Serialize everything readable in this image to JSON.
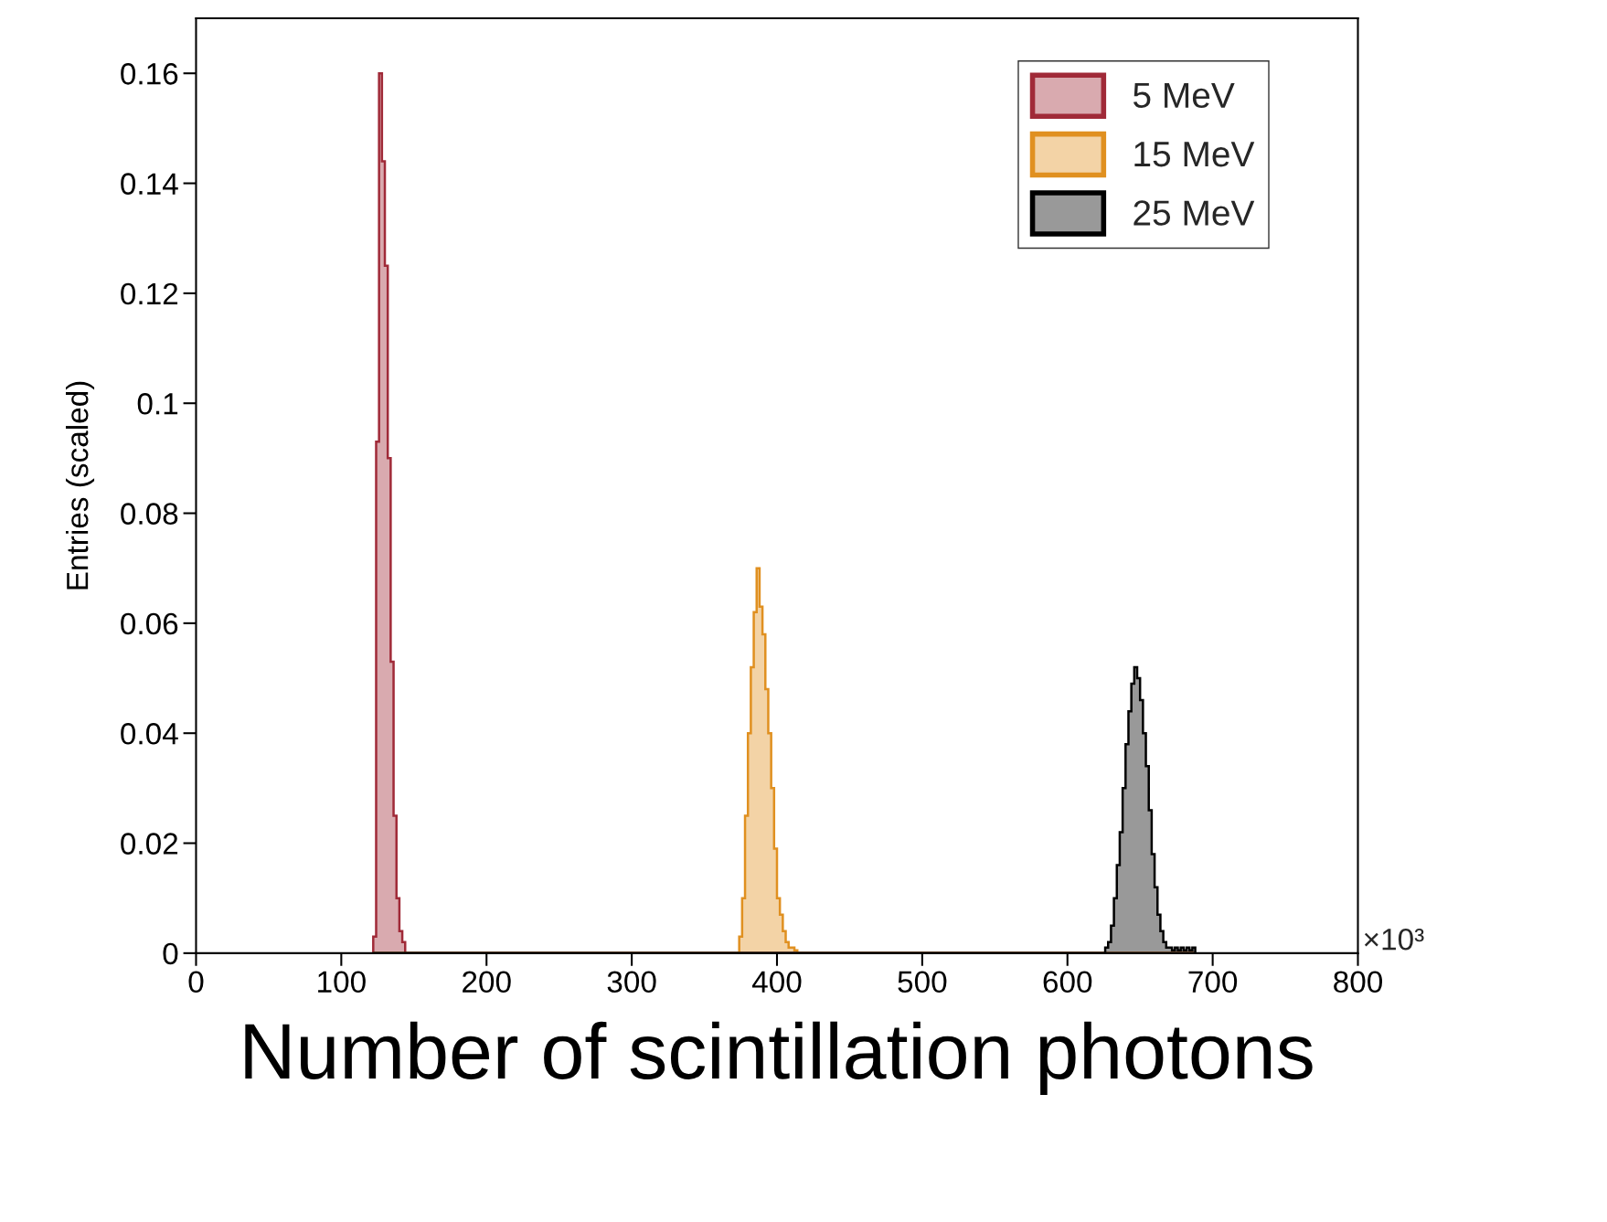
{
  "chart_data": {
    "type": "histogram",
    "xlabel": "Number of scintillation photons",
    "ylabel": "Entries (scaled)",
    "xlim": [
      0,
      800
    ],
    "xticks": [
      0,
      100,
      200,
      300,
      400,
      500,
      600,
      700,
      800
    ],
    "ylim": [
      0,
      0.17
    ],
    "yticks": [
      0,
      0.02,
      0.04,
      0.06,
      0.08,
      0.1,
      0.12,
      0.14,
      0.16
    ],
    "legend": "top right",
    "grid": false,
    "annotations": [
      "×10³"
    ],
    "bins": [
      122,
      124,
      126,
      128,
      130,
      132,
      134,
      136,
      138,
      140,
      142,
      144,
      146,
      148,
      150,
      152,
      154,
      156,
      158,
      160,
      162,
      164,
      166,
      168,
      170,
      172,
      174,
      176,
      178,
      180,
      182,
      184,
      186,
      188,
      190,
      192,
      194,
      196,
      198,
      200,
      202,
      204,
      206,
      208,
      210,
      212,
      214,
      216,
      218,
      220,
      222,
      224,
      226,
      228,
      230,
      232,
      234,
      236,
      238,
      240,
      242,
      244,
      246,
      248,
      250,
      252,
      254,
      256,
      258,
      260,
      262,
      264,
      266,
      268,
      270,
      272,
      274,
      276,
      278,
      280,
      282,
      284,
      286,
      288,
      290,
      292,
      294,
      296,
      298,
      300,
      302,
      304,
      306,
      308,
      310,
      312,
      314,
      316,
      318,
      320,
      322,
      324,
      326,
      328,
      330,
      332,
      334,
      336,
      338,
      340,
      342,
      344,
      346,
      348,
      350,
      352,
      354,
      356,
      358,
      360,
      362,
      364,
      366,
      368,
      370,
      372,
      374,
      376,
      378,
      380,
      382,
      384,
      386,
      388,
      390,
      392,
      394,
      396,
      398,
      400,
      402,
      404,
      406,
      408,
      410,
      412,
      414,
      416,
      418,
      420,
      422,
      424,
      426,
      428,
      430,
      432,
      434,
      436,
      438,
      440,
      442,
      444,
      446,
      448,
      450,
      452,
      454,
      456,
      458,
      460,
      462,
      464,
      466,
      468,
      470,
      472,
      474,
      476,
      478,
      480,
      482,
      484,
      486,
      488,
      490,
      492,
      494,
      496,
      498,
      500,
      502,
      504,
      506,
      508,
      510,
      512,
      514,
      516,
      518,
      520,
      522,
      524,
      526,
      528,
      530,
      532,
      534,
      536,
      538,
      540,
      542,
      544,
      546,
      548,
      550,
      552,
      554,
      556,
      558,
      560,
      562,
      564,
      566,
      568,
      570,
      572,
      574,
      576,
      578,
      580,
      582,
      584,
      586,
      588,
      590,
      592,
      594,
      596,
      598,
      600,
      602,
      604,
      606,
      608,
      610,
      612,
      614,
      616,
      618,
      620,
      622,
      624,
      626,
      628,
      630,
      632,
      634,
      636,
      638,
      640,
      642,
      644,
      646,
      648,
      650,
      652,
      654,
      656,
      658,
      660,
      662,
      664,
      666,
      668,
      670,
      672,
      674,
      676,
      678,
      680,
      682,
      684,
      686,
      688
    ],
    "series": [
      {
        "name": "5 MeV",
        "color": "#a02a38",
        "values": [
          0.003,
          0.093,
          0.16,
          0.144,
          0.125,
          0.09,
          0.053,
          0.025,
          0.01,
          0.004,
          0.002,
          0,
          0,
          0,
          0,
          0,
          0,
          0,
          0,
          0,
          0,
          0,
          0,
          0,
          0,
          0,
          0,
          0,
          0,
          0,
          0,
          0,
          0,
          0,
          0,
          0,
          0,
          0,
          0,
          0,
          0,
          0,
          0,
          0,
          0,
          0,
          0,
          0,
          0,
          0,
          0,
          0,
          0,
          0,
          0,
          0,
          0,
          0,
          0,
          0,
          0,
          0,
          0,
          0,
          0,
          0,
          0,
          0,
          0,
          0,
          0,
          0,
          0,
          0,
          0,
          0,
          0,
          0,
          0,
          0,
          0,
          0,
          0,
          0,
          0,
          0,
          0,
          0,
          0,
          0,
          0,
          0,
          0,
          0,
          0,
          0,
          0,
          0,
          0,
          0,
          0,
          0,
          0,
          0,
          0,
          0,
          0,
          0,
          0,
          0,
          0,
          0,
          0,
          0,
          0,
          0,
          0,
          0,
          0,
          0,
          0,
          0,
          0,
          0,
          0,
          0,
          0,
          0,
          0,
          0,
          0,
          0,
          0,
          0,
          0,
          0,
          0,
          0,
          0,
          0,
          0,
          0,
          0,
          0,
          0,
          0,
          0,
          0,
          0,
          0,
          0,
          0,
          0,
          0,
          0,
          0,
          0,
          0,
          0,
          0,
          0,
          0,
          0,
          0,
          0,
          0,
          0,
          0,
          0,
          0,
          0,
          0,
          0,
          0,
          0,
          0,
          0,
          0,
          0,
          0,
          0,
          0,
          0,
          0,
          0,
          0,
          0,
          0,
          0,
          0,
          0,
          0,
          0,
          0,
          0,
          0,
          0,
          0,
          0,
          0,
          0,
          0,
          0,
          0,
          0,
          0,
          0,
          0,
          0,
          0,
          0,
          0,
          0,
          0,
          0,
          0,
          0,
          0,
          0,
          0,
          0,
          0,
          0,
          0,
          0,
          0,
          0,
          0,
          0,
          0,
          0,
          0,
          0,
          0,
          0,
          0,
          0,
          0,
          0,
          0,
          0,
          0,
          0,
          0,
          0,
          0,
          0,
          0,
          0,
          0,
          0,
          0,
          0,
          0,
          0,
          0,
          0,
          0,
          0,
          0,
          0,
          0,
          0,
          0,
          0,
          0,
          0,
          0,
          0,
          0,
          0,
          0,
          0,
          0,
          0,
          0,
          0,
          0,
          0,
          0,
          0,
          0,
          0
        ]
      },
      {
        "name": "15 MeV",
        "color": "#e09020",
        "values": [
          0,
          0,
          0,
          0,
          0,
          0,
          0,
          0,
          0,
          0,
          0,
          0,
          0,
          0,
          0,
          0,
          0,
          0,
          0,
          0,
          0,
          0,
          0,
          0,
          0,
          0,
          0,
          0,
          0,
          0,
          0,
          0,
          0,
          0,
          0,
          0,
          0,
          0,
          0,
          0,
          0,
          0,
          0,
          0,
          0,
          0,
          0,
          0,
          0,
          0,
          0,
          0,
          0,
          0,
          0,
          0,
          0,
          0,
          0,
          0,
          0,
          0,
          0,
          0,
          0,
          0,
          0,
          0,
          0,
          0,
          0,
          0,
          0,
          0,
          0,
          0,
          0,
          0,
          0,
          0,
          0,
          0,
          0,
          0,
          0,
          0,
          0,
          0,
          0,
          0,
          0,
          0,
          0,
          0,
          0,
          0,
          0,
          0,
          0,
          0,
          0,
          0,
          0,
          0,
          0,
          0,
          0,
          0,
          0,
          0,
          0,
          0,
          0,
          0,
          0,
          0,
          0,
          0,
          0,
          0,
          0,
          0,
          0,
          0,
          0,
          0,
          0.003,
          0.01,
          0.025,
          0.04,
          0.052,
          0.062,
          0.07,
          0.063,
          0.058,
          0.048,
          0.04,
          0.03,
          0.019,
          0.01,
          0.007,
          0.004,
          0.002,
          0.001,
          0.001,
          0.0005,
          0,
          0,
          0,
          0,
          0,
          0,
          0,
          0,
          0,
          0,
          0,
          0,
          0,
          0,
          0,
          0,
          0,
          0,
          0,
          0,
          0,
          0,
          0,
          0,
          0,
          0,
          0,
          0,
          0,
          0,
          0,
          0,
          0,
          0,
          0,
          0,
          0,
          0,
          0,
          0,
          0,
          0,
          0,
          0,
          0,
          0,
          0,
          0,
          0,
          0,
          0,
          0,
          0,
          0,
          0,
          0,
          0,
          0,
          0,
          0,
          0,
          0,
          0,
          0,
          0,
          0,
          0,
          0,
          0,
          0,
          0,
          0,
          0,
          0,
          0,
          0,
          0,
          0,
          0,
          0,
          0,
          0,
          0,
          0,
          0,
          0,
          0,
          0,
          0,
          0,
          0,
          0,
          0,
          0,
          0,
          0,
          0,
          0,
          0,
          0,
          0,
          0,
          0,
          0,
          0,
          0,
          0,
          0,
          0,
          0,
          0,
          0,
          0,
          0,
          0,
          0,
          0,
          0,
          0,
          0,
          0,
          0,
          0,
          0,
          0,
          0,
          0,
          0,
          0,
          0,
          0,
          0,
          0,
          0,
          0,
          0,
          0
        ]
      },
      {
        "name": "25 MeV",
        "color": "#000000",
        "values": [
          0,
          0,
          0,
          0,
          0,
          0,
          0,
          0,
          0,
          0,
          0,
          0,
          0,
          0,
          0,
          0,
          0,
          0,
          0,
          0,
          0,
          0,
          0,
          0,
          0,
          0,
          0,
          0,
          0,
          0,
          0,
          0,
          0,
          0,
          0,
          0,
          0,
          0,
          0,
          0,
          0,
          0,
          0,
          0,
          0,
          0,
          0,
          0,
          0,
          0,
          0,
          0,
          0,
          0,
          0,
          0,
          0,
          0,
          0,
          0,
          0,
          0,
          0,
          0,
          0,
          0,
          0,
          0,
          0,
          0,
          0,
          0,
          0,
          0,
          0,
          0,
          0,
          0,
          0,
          0,
          0,
          0,
          0,
          0,
          0,
          0,
          0,
          0,
          0,
          0,
          0,
          0,
          0,
          0,
          0,
          0,
          0,
          0,
          0,
          0,
          0,
          0,
          0,
          0,
          0,
          0,
          0,
          0,
          0,
          0,
          0,
          0,
          0,
          0,
          0,
          0,
          0,
          0,
          0,
          0,
          0,
          0,
          0,
          0,
          0,
          0,
          0,
          0,
          0,
          0,
          0,
          0,
          0,
          0,
          0,
          0,
          0,
          0,
          0,
          0,
          0,
          0,
          0,
          0,
          0,
          0,
          0,
          0,
          0,
          0,
          0,
          0,
          0,
          0,
          0,
          0,
          0,
          0,
          0,
          0,
          0,
          0,
          0,
          0,
          0,
          0,
          0,
          0,
          0,
          0,
          0,
          0,
          0,
          0,
          0,
          0,
          0,
          0,
          0,
          0,
          0,
          0,
          0,
          0,
          0,
          0,
          0,
          0,
          0,
          0,
          0,
          0,
          0,
          0,
          0,
          0,
          0,
          0,
          0,
          0,
          0,
          0,
          0,
          0,
          0,
          0,
          0,
          0,
          0,
          0,
          0,
          0,
          0,
          0,
          0,
          0,
          0,
          0,
          0,
          0,
          0,
          0,
          0,
          0,
          0,
          0,
          0,
          0,
          0,
          0,
          0,
          0,
          0,
          0,
          0,
          0,
          0,
          0,
          0,
          0,
          0,
          0,
          0,
          0,
          0,
          0,
          0,
          0,
          0,
          0,
          0,
          0,
          0.001,
          0.002,
          0.005,
          0.01,
          0.016,
          0.022,
          0.03,
          0.038,
          0.044,
          0.049,
          0.052,
          0.05,
          0.046,
          0.04,
          0.034,
          0.026,
          0.018,
          0.012,
          0.007,
          0.004,
          0.002,
          0.001,
          0.001,
          0.0005,
          0.001,
          0.0005,
          0.001,
          0.0005,
          0.001,
          0.0005,
          0.001
        ]
      }
    ]
  }
}
